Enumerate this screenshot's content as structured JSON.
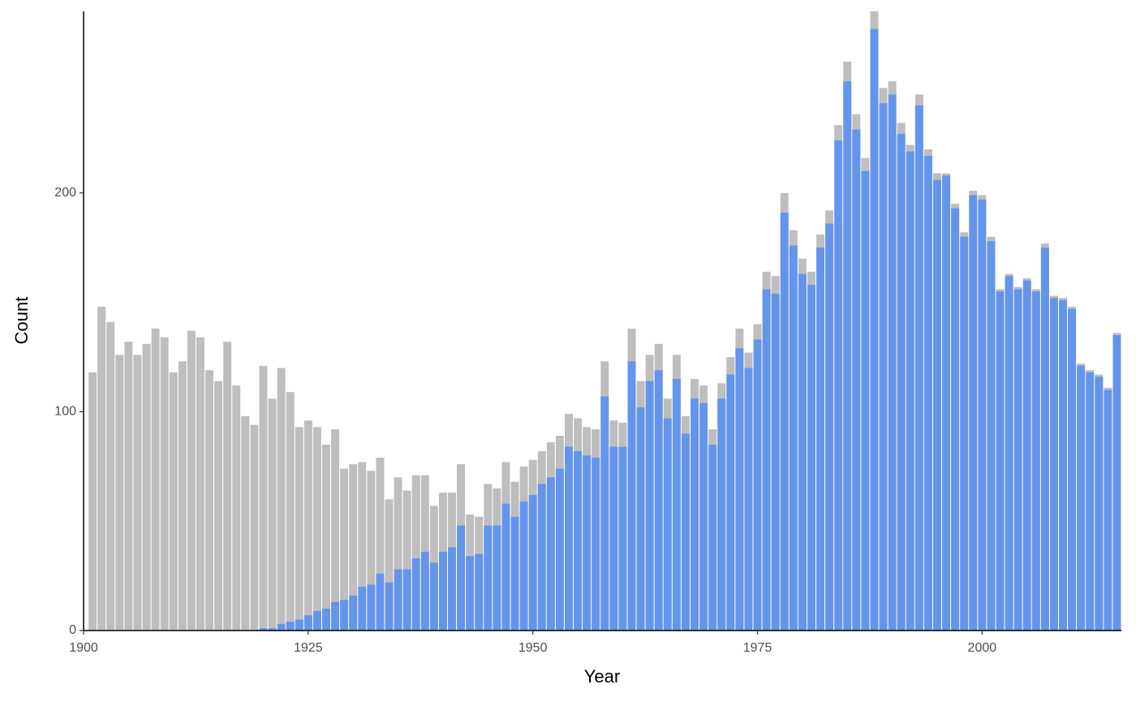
{
  "chart_data": {
    "type": "bar",
    "x_label": "Year",
    "y_label": "Count",
    "x": [
      1901,
      1902,
      1903,
      1904,
      1905,
      1906,
      1907,
      1908,
      1909,
      1910,
      1911,
      1912,
      1913,
      1914,
      1915,
      1916,
      1917,
      1918,
      1919,
      1920,
      1921,
      1922,
      1923,
      1924,
      1925,
      1926,
      1927,
      1928,
      1929,
      1930,
      1931,
      1932,
      1933,
      1934,
      1935,
      1936,
      1937,
      1938,
      1939,
      1940,
      1941,
      1942,
      1943,
      1944,
      1945,
      1946,
      1947,
      1948,
      1949,
      1950,
      1951,
      1952,
      1953,
      1954,
      1955,
      1956,
      1957,
      1958,
      1959,
      1960,
      1961,
      1962,
      1963,
      1964,
      1965,
      1966,
      1967,
      1968,
      1969,
      1970,
      1971,
      1972,
      1973,
      1974,
      1975,
      1976,
      1977,
      1978,
      1979,
      1980,
      1981,
      1982,
      1983,
      1984,
      1985,
      1986,
      1987,
      1988,
      1989,
      1990,
      1991,
      1992,
      1993,
      1994,
      1995,
      1996,
      1997,
      1998,
      1999,
      2000,
      2001,
      2002,
      2003,
      2004,
      2005,
      2006,
      2007,
      2008,
      2009,
      2010,
      2011,
      2012,
      2013,
      2014,
      2015
    ],
    "series": [
      {
        "color": "#bebebe",
        "values": [
          118,
          148,
          141,
          126,
          132,
          126,
          131,
          138,
          134,
          118,
          123,
          137,
          134,
          119,
          114,
          132,
          112,
          98,
          94,
          121,
          106,
          120,
          109,
          93,
          96,
          93,
          85,
          92,
          74,
          76,
          77,
          73,
          79,
          60,
          70,
          64,
          71,
          71,
          57,
          63,
          63,
          76,
          53,
          52,
          67,
          65,
          77,
          68,
          75,
          78,
          82,
          86,
          89,
          99,
          97,
          93,
          92,
          123,
          96,
          95,
          138,
          114,
          126,
          131,
          106,
          126,
          98,
          115,
          112,
          92,
          113,
          125,
          138,
          127,
          140,
          164,
          162,
          200,
          183,
          170,
          164,
          181,
          192,
          231,
          260,
          236,
          216,
          283,
          248,
          251,
          232,
          222,
          245,
          220,
          209,
          209,
          195,
          182,
          201,
          199,
          180,
          156,
          163,
          157,
          161,
          156,
          177,
          153,
          152,
          148,
          122,
          119,
          117,
          111,
          136
        ]
      },
      {
        "color": "#6495ed",
        "values": [
          0,
          0,
          0,
          0,
          0,
          0,
          0,
          0,
          0,
          0,
          0,
          0,
          0,
          0,
          0,
          0,
          0,
          0,
          0,
          1,
          1,
          3,
          4,
          5,
          7,
          9,
          10,
          13,
          14,
          16,
          20,
          21,
          26,
          22,
          28,
          28,
          33,
          36,
          31,
          36,
          38,
          48,
          34,
          35,
          48,
          48,
          58,
          52,
          59,
          62,
          67,
          70,
          74,
          84,
          82,
          80,
          79,
          107,
          84,
          84,
          123,
          102,
          114,
          119,
          97,
          115,
          90,
          106,
          104,
          85,
          106,
          117,
          129,
          120,
          133,
          156,
          154,
          191,
          176,
          163,
          158,
          175,
          186,
          224,
          251,
          229,
          210,
          275,
          241,
          245,
          227,
          219,
          240,
          217,
          206,
          208,
          193,
          180,
          199,
          197,
          178,
          155,
          162,
          156,
          160,
          155,
          175,
          152,
          151,
          147,
          121,
          118,
          116,
          110,
          135
        ]
      }
    ],
    "xlim": [
      1900,
      2015.5
    ],
    "ylim": [
      0,
      283
    ],
    "xticks": [
      1900,
      1925,
      1950,
      1975,
      2000
    ],
    "yticks": [
      0,
      100,
      200
    ]
  }
}
